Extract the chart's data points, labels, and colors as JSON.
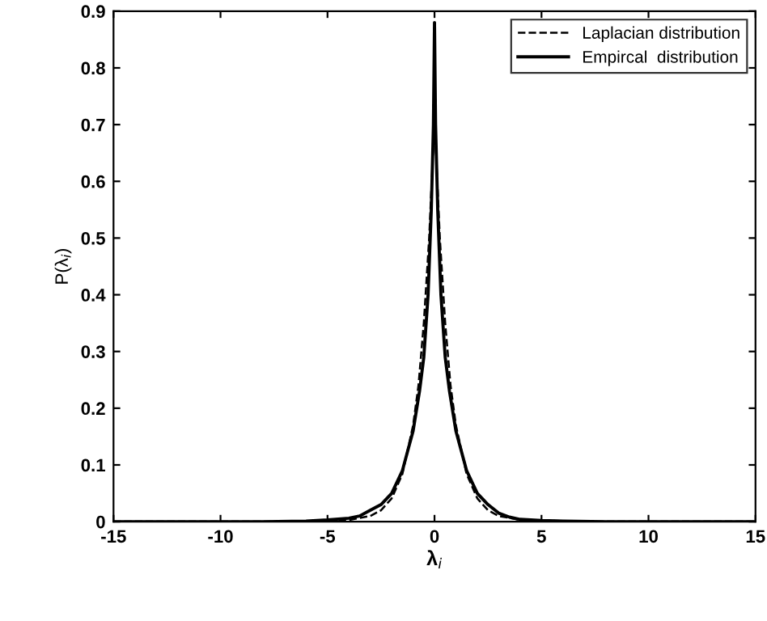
{
  "chart_data": {
    "type": "line",
    "xlabel": "λ$_{i}$",
    "ylabel": "P(λ$_{i}$)",
    "xlim": [
      -15,
      15
    ],
    "ylim": [
      0,
      0.9
    ],
    "xticks": [
      -15,
      -10,
      -5,
      0,
      5,
      10,
      15
    ],
    "yticks": [
      0,
      0.1,
      0.2,
      0.3,
      0.4,
      0.5,
      0.6,
      0.7,
      0.8,
      0.9
    ],
    "grid": false,
    "legend": "top right",
    "series": [
      {
        "name": "Laplacian distribution",
        "color": "#000000",
        "line_style": "dashed",
        "x": [
          -15,
          -8,
          -6,
          -5,
          -4,
          -3,
          -2.5,
          -2,
          -1.5,
          -1,
          -0.75,
          -0.5,
          -0.25,
          0,
          0.25,
          0.5,
          0.75,
          1,
          1.5,
          2,
          2.5,
          3,
          4,
          5,
          6,
          8,
          15
        ],
        "values": [
          0,
          0,
          0.001,
          0.002,
          0.003,
          0.01,
          0.02,
          0.041,
          0.084,
          0.17,
          0.24,
          0.35,
          0.5,
          0.71,
          0.5,
          0.35,
          0.24,
          0.17,
          0.084,
          0.041,
          0.02,
          0.01,
          0.003,
          0.002,
          0.001,
          0,
          0
        ]
      },
      {
        "name": "Empircal  distribution",
        "color": "#000000",
        "line_style": "solid",
        "x": [
          -15,
          -8,
          -6,
          -5,
          -4,
          -3.5,
          -3,
          -2.5,
          -2,
          -1.5,
          -1,
          -0.7,
          -0.5,
          -0.3,
          -0.15,
          -0.05,
          0,
          0.05,
          0.15,
          0.3,
          0.5,
          0.7,
          1,
          1.5,
          2,
          2.5,
          3,
          3.5,
          4,
          5,
          6,
          8,
          15
        ],
        "values": [
          0,
          0,
          0.001,
          0.003,
          0.006,
          0.01,
          0.02,
          0.03,
          0.05,
          0.09,
          0.16,
          0.23,
          0.29,
          0.4,
          0.55,
          0.7,
          0.88,
          0.7,
          0.55,
          0.4,
          0.29,
          0.23,
          0.16,
          0.09,
          0.05,
          0.03,
          0.015,
          0.008,
          0.004,
          0.002,
          0.001,
          0,
          0
        ]
      }
    ]
  }
}
